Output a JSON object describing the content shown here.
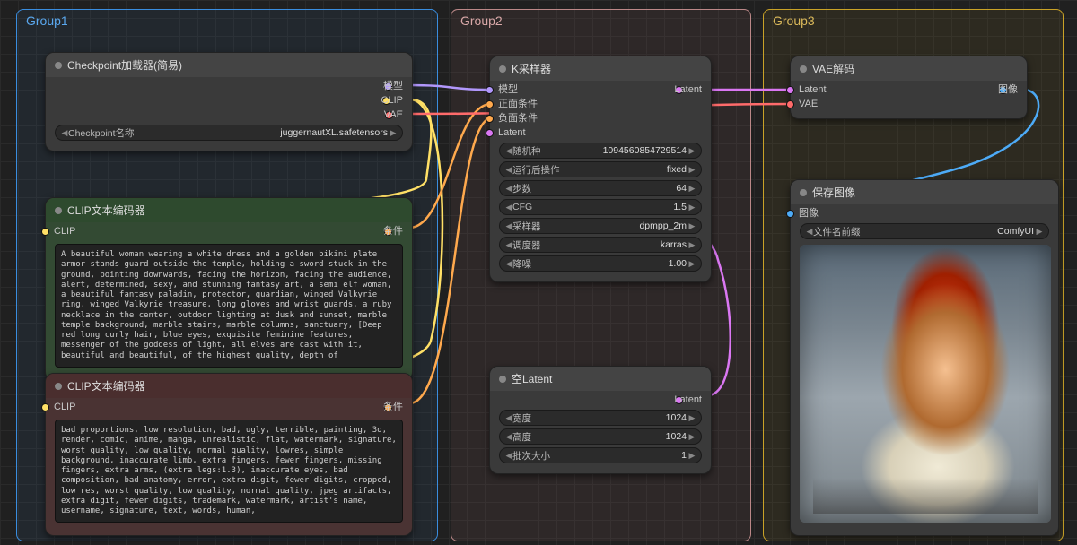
{
  "groups": {
    "g1": "Group1",
    "g2": "Group2",
    "g3": "Group3"
  },
  "colors": {
    "model": "#b197fc",
    "clip": "#ffe066",
    "vae": "#ff6b6b",
    "cond": "#ffa94d",
    "latent": "#da77f2",
    "image": "#4dabf7"
  },
  "checkpoint": {
    "title": "Checkpoint加载器(简易)",
    "out_model": "模型",
    "out_clip": "CLIP",
    "out_vae": "VAE",
    "widget_label": "Checkpoint名称",
    "widget_value": "juggernautXL.safetensors"
  },
  "clip_pos": {
    "title": "CLIP文本编码器",
    "in_clip": "CLIP",
    "out_cond": "条件",
    "text": "A beautiful woman wearing a white dress and a golden bikini plate armor stands guard outside the temple, holding a sword stuck in the ground, pointing downwards, facing the horizon, facing the audience, alert, determined, sexy, and stunning fantasy art, a semi elf woman, a beautiful fantasy paladin, protector, guardian, winged Valkyrie ring, winged Valkyrie treasure, long gloves and wrist guards, a ruby necklace in the center, outdoor lighting at dusk and sunset, marble temple background, marble stairs, marble columns, sanctuary, [Deep red long curly hair, blue eyes, exquisite feminine features, messenger of the goddess of light, all elves are cast with it, beautiful and beautiful, of the highest quality, depth of"
  },
  "clip_neg": {
    "title": "CLIP文本编码器",
    "in_clip": "CLIP",
    "out_cond": "条件",
    "text": "bad proportions, low resolution, bad, ugly, terrible, painting, 3d, render, comic, anime, manga, unrealistic, flat, watermark, signature, worst quality, low quality, normal quality, lowres, simple background, inaccurate limb, extra fingers, fewer fingers, missing fingers, extra arms, (extra legs:1.3), inaccurate eyes, bad composition, bad anatomy, error, extra digit, fewer digits, cropped, low res, worst quality, low quality, normal quality, jpeg artifacts, extra digit, fewer digits, trademark, watermark, artist's name, username, signature, text, words, human,"
  },
  "ksampler": {
    "title": "K采样器",
    "in_model": "模型",
    "in_pos": "正面条件",
    "in_neg": "负面条件",
    "in_latent": "Latent",
    "out_latent": "Latent",
    "widgets": [
      {
        "label": "随机种",
        "value": "1094560854729514"
      },
      {
        "label": "运行后操作",
        "value": "fixed"
      },
      {
        "label": "步数",
        "value": "64"
      },
      {
        "label": "CFG",
        "value": "1.5"
      },
      {
        "label": "采样器",
        "value": "dpmpp_2m"
      },
      {
        "label": "调度器",
        "value": "karras"
      },
      {
        "label": "降噪",
        "value": "1.00"
      }
    ]
  },
  "empty_latent": {
    "title": "空Latent",
    "out_latent": "Latent",
    "widgets": [
      {
        "label": "宽度",
        "value": "1024"
      },
      {
        "label": "高度",
        "value": "1024"
      },
      {
        "label": "批次大小",
        "value": "1"
      }
    ]
  },
  "vae_decode": {
    "title": "VAE解码",
    "in_latent": "Latent",
    "in_vae": "VAE",
    "out_image": "图像"
  },
  "save_image": {
    "title": "保存图像",
    "in_image": "图像",
    "widget_label": "文件名前缀",
    "widget_value": "ComfyUI"
  }
}
